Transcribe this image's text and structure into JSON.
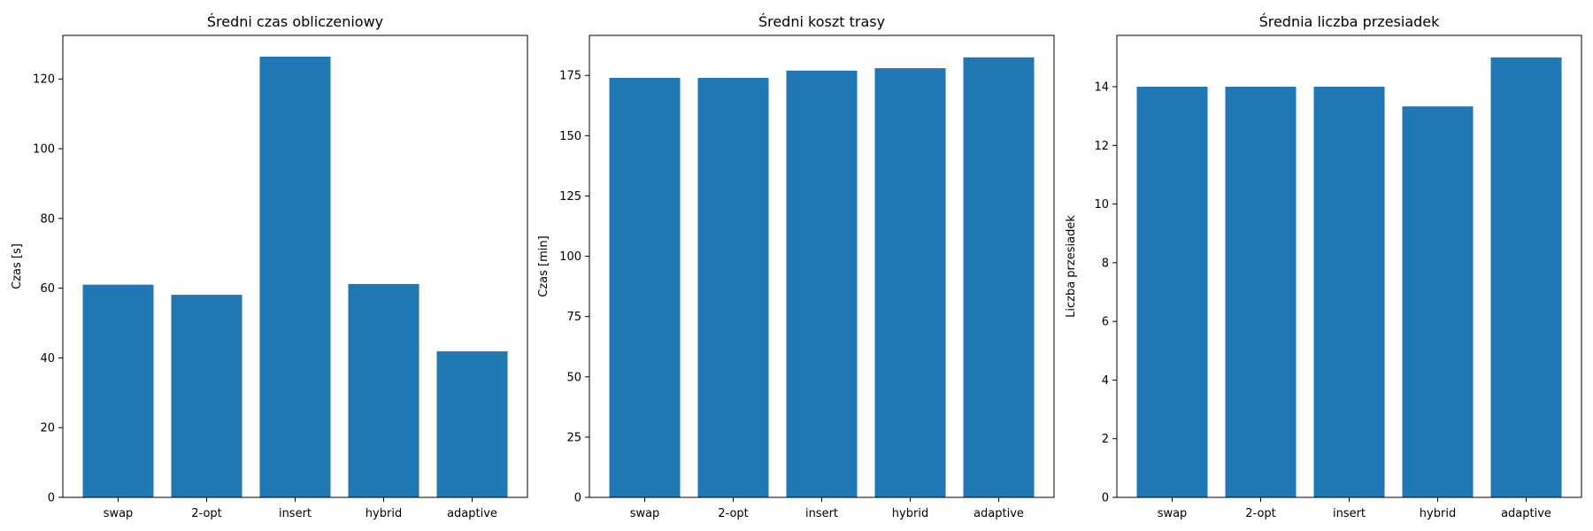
{
  "chart_data": [
    {
      "type": "bar",
      "title": "Średni czas obliczeniowy",
      "xlabel": "",
      "ylabel": "Czas [s]",
      "categories": [
        "swap",
        "2-opt",
        "insert",
        "hybrid",
        "adaptive"
      ],
      "values": [
        61.0,
        58.1,
        126.4,
        61.2,
        41.9
      ],
      "ylim": [
        0,
        132.5
      ],
      "yticks": [
        0,
        20,
        40,
        60,
        80,
        100,
        120
      ],
      "color": "#1f77b4",
      "grid": false
    },
    {
      "type": "bar",
      "title": "Średni koszt trasy",
      "xlabel": "",
      "ylabel": "Czas [min]",
      "categories": [
        "swap",
        "2-opt",
        "insert",
        "hybrid",
        "adaptive"
      ],
      "values": [
        174.0,
        174.0,
        177.0,
        178.0,
        182.5
      ],
      "ylim": [
        0,
        191.6
      ],
      "yticks": [
        0,
        25,
        50,
        75,
        100,
        125,
        150,
        175
      ],
      "color": "#1f77b4",
      "grid": false
    },
    {
      "type": "bar",
      "title": "Średnia liczba przesiadek",
      "xlabel": "",
      "ylabel": "Liczba przesiadek",
      "categories": [
        "swap",
        "2-opt",
        "insert",
        "hybrid",
        "adaptive"
      ],
      "values": [
        14.0,
        14.0,
        14.0,
        13.33,
        15.0
      ],
      "ylim": [
        0,
        15.75
      ],
      "yticks": [
        0,
        2,
        4,
        6,
        8,
        10,
        12,
        14
      ],
      "color": "#1f77b4",
      "grid": false
    }
  ]
}
